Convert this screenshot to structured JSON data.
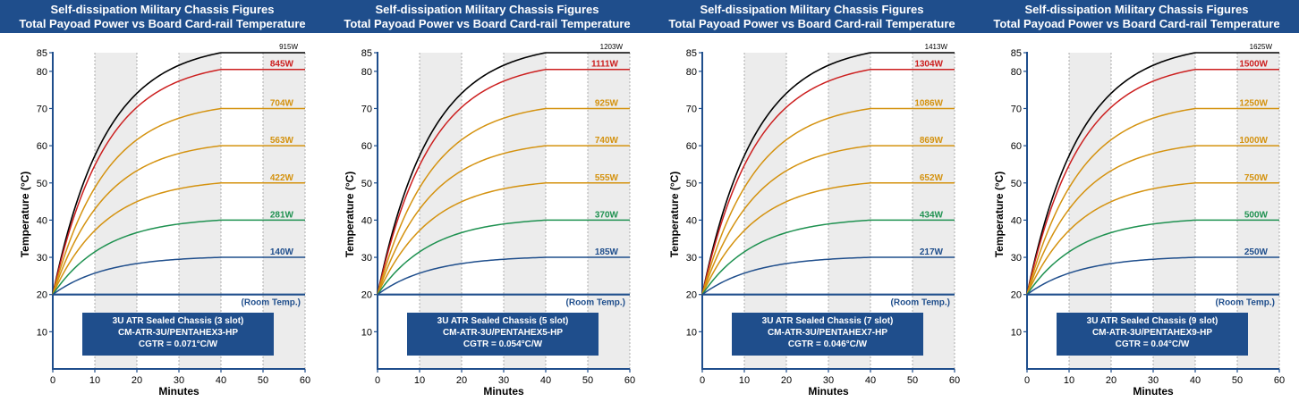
{
  "chart_data": [
    {
      "type": "line",
      "title": "Self-dissipation Military Chassis Figures",
      "subtitle": "Total Payoad Power vs Board Card-rail Temperature",
      "xlabel": "Minutes",
      "ylabel": "Temperature (°C)",
      "xlim": [
        0,
        60
      ],
      "ylim": [
        0,
        85
      ],
      "xticks": [
        0,
        10,
        20,
        30,
        40,
        50,
        60
      ],
      "yticks": [
        10,
        20,
        30,
        40,
        50,
        60,
        70,
        80,
        85
      ],
      "shaded_bands": [
        [
          10,
          20
        ],
        [
          30,
          40
        ],
        [
          50,
          60
        ]
      ],
      "baseline": {
        "label": "(Room Temp.)",
        "value": 20
      },
      "series": [
        {
          "name": "915W",
          "plateau": 85,
          "color": "#000000"
        },
        {
          "name": "845W",
          "plateau": 80.5,
          "color": "#cc1f1f"
        },
        {
          "name": "704W",
          "plateau": 70,
          "color": "#d4920f"
        },
        {
          "name": "563W",
          "plateau": 60,
          "color": "#d4920f"
        },
        {
          "name": "422W",
          "plateau": 50,
          "color": "#d4920f"
        },
        {
          "name": "281W",
          "plateau": 40,
          "color": "#1e9150"
        },
        {
          "name": "140W",
          "plateau": 30,
          "color": "#1f4e8c"
        }
      ],
      "info": [
        "3U ATR Sealed Chassis (3 slot)",
        "CM-ATR-3U/PENTAHEX3-HP",
        "CGTR = 0.071°C/W"
      ]
    },
    {
      "type": "line",
      "title": "Self-dissipation Military Chassis Figures",
      "subtitle": "Total Payoad Power vs Board Card-rail Temperature",
      "xlabel": "Minutes",
      "ylabel": "Temperature (°C)",
      "xlim": [
        0,
        60
      ],
      "ylim": [
        0,
        85
      ],
      "xticks": [
        0,
        10,
        20,
        30,
        40,
        50,
        60
      ],
      "yticks": [
        10,
        20,
        30,
        40,
        50,
        60,
        70,
        80,
        85
      ],
      "shaded_bands": [
        [
          10,
          20
        ],
        [
          30,
          40
        ],
        [
          50,
          60
        ]
      ],
      "baseline": {
        "label": "(Room Temp.)",
        "value": 20
      },
      "series": [
        {
          "name": "1203W",
          "plateau": 85,
          "color": "#000000"
        },
        {
          "name": "1111W",
          "plateau": 80.5,
          "color": "#cc1f1f"
        },
        {
          "name": "925W",
          "plateau": 70,
          "color": "#d4920f"
        },
        {
          "name": "740W",
          "plateau": 60,
          "color": "#d4920f"
        },
        {
          "name": "555W",
          "plateau": 50,
          "color": "#d4920f"
        },
        {
          "name": "370W",
          "plateau": 40,
          "color": "#1e9150"
        },
        {
          "name": "185W",
          "plateau": 30,
          "color": "#1f4e8c"
        }
      ],
      "info": [
        "3U ATR Sealed Chassis (5 slot)",
        "CM-ATR-3U/PENTAHEX5-HP",
        "CGTR = 0.054°C/W"
      ]
    },
    {
      "type": "line",
      "title": "Self-dissipation Military Chassis Figures",
      "subtitle": "Total Payoad Power vs Board Card-rail Temperature",
      "xlabel": "Minutes",
      "ylabel": "Temperature (°C)",
      "xlim": [
        0,
        60
      ],
      "ylim": [
        0,
        85
      ],
      "xticks": [
        0,
        10,
        20,
        30,
        40,
        50,
        60
      ],
      "yticks": [
        10,
        20,
        30,
        40,
        50,
        60,
        70,
        80,
        85
      ],
      "shaded_bands": [
        [
          10,
          20
        ],
        [
          30,
          40
        ],
        [
          50,
          60
        ]
      ],
      "baseline": {
        "label": "(Room Temp.)",
        "value": 20
      },
      "series": [
        {
          "name": "1413W",
          "plateau": 85,
          "color": "#000000"
        },
        {
          "name": "1304W",
          "plateau": 80.5,
          "color": "#cc1f1f"
        },
        {
          "name": "1086W",
          "plateau": 70,
          "color": "#d4920f"
        },
        {
          "name": "869W",
          "plateau": 60,
          "color": "#d4920f"
        },
        {
          "name": "652W",
          "plateau": 50,
          "color": "#d4920f"
        },
        {
          "name": "434W",
          "plateau": 40,
          "color": "#1e9150"
        },
        {
          "name": "217W",
          "plateau": 30,
          "color": "#1f4e8c"
        }
      ],
      "info": [
        "3U ATR Sealed Chassis (7 slot)",
        "CM-ATR-3U/PENTAHEX7-HP",
        "CGTR = 0.046°C/W"
      ]
    },
    {
      "type": "line",
      "title": "Self-dissipation Military Chassis Figures",
      "subtitle": "Total Payoad Power vs Board Card-rail Temperature",
      "xlabel": "Minutes",
      "ylabel": "Temperature (°C)",
      "xlim": [
        0,
        60
      ],
      "ylim": [
        0,
        85
      ],
      "xticks": [
        0,
        10,
        20,
        30,
        40,
        50,
        60
      ],
      "yticks": [
        10,
        20,
        30,
        40,
        50,
        60,
        70,
        80,
        85
      ],
      "shaded_bands": [
        [
          10,
          20
        ],
        [
          30,
          40
        ],
        [
          50,
          60
        ]
      ],
      "baseline": {
        "label": "(Room Temp.)",
        "value": 20
      },
      "series": [
        {
          "name": "1625W",
          "plateau": 85,
          "color": "#000000"
        },
        {
          "name": "1500W",
          "plateau": 80.5,
          "color": "#cc1f1f"
        },
        {
          "name": "1250W",
          "plateau": 70,
          "color": "#d4920f"
        },
        {
          "name": "1000W",
          "plateau": 60,
          "color": "#d4920f"
        },
        {
          "name": "750W",
          "plateau": 50,
          "color": "#d4920f"
        },
        {
          "name": "500W",
          "plateau": 40,
          "color": "#1e9150"
        },
        {
          "name": "250W",
          "plateau": 30,
          "color": "#1f4e8c"
        }
      ],
      "info": [
        "3U ATR Sealed Chassis (9 slot)",
        "CM-ATR-3U/PENTAHEX9-HP",
        "CGTR = 0.04°C/W"
      ]
    }
  ],
  "colors": {
    "title_bar": "#1f4e8c",
    "info_box": "#1f4e8c",
    "axis": "#1f4e8c",
    "band": "#ececec",
    "baseline": "#1f4e8c"
  }
}
